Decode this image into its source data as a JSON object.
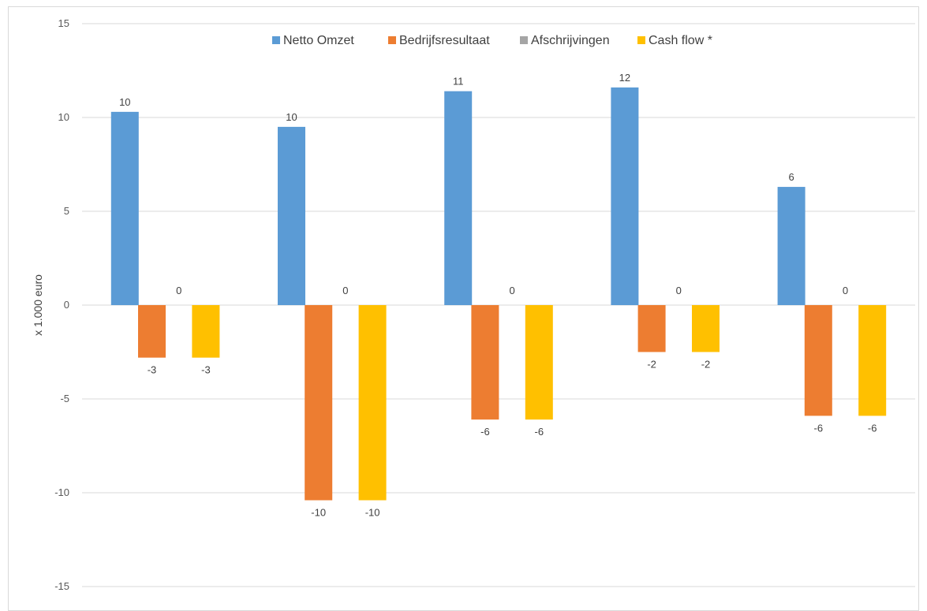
{
  "chart_data": {
    "type": "bar",
    "title": "",
    "xlabel": "",
    "ylabel": "x 1.000 euro",
    "ylim": [
      -15,
      15
    ],
    "yticks": [
      15,
      10,
      5,
      0,
      -5,
      -10,
      -15
    ],
    "categories": [
      "",
      "",
      "",
      "",
      ""
    ],
    "legend_position": "top-center",
    "grid": true,
    "series": [
      {
        "name": "Netto Omzet",
        "color": "#5b9bd5",
        "values": [
          10.3,
          9.5,
          11.4,
          11.6,
          6.3
        ],
        "labels": [
          "10",
          "10",
          "11",
          "12",
          "6"
        ]
      },
      {
        "name": "Bedrijfsresultaat",
        "color": "#ed7d31",
        "values": [
          -2.8,
          -10.4,
          -6.1,
          -2.5,
          -5.9
        ],
        "labels": [
          "-3",
          "-10",
          "-6",
          "-2",
          "-6"
        ]
      },
      {
        "name": "Afschrijvingen",
        "color": "#a5a5a5",
        "values": [
          0,
          0,
          0,
          0,
          0
        ],
        "labels": [
          "0",
          "0",
          "0",
          "0",
          "0"
        ]
      },
      {
        "name": "Cash flow *",
        "color": "#ffc000",
        "values": [
          -2.8,
          -10.4,
          -6.1,
          -2.5,
          -5.9
        ],
        "labels": [
          "-3",
          "-10",
          "-6",
          "-2",
          "-6"
        ]
      }
    ]
  }
}
